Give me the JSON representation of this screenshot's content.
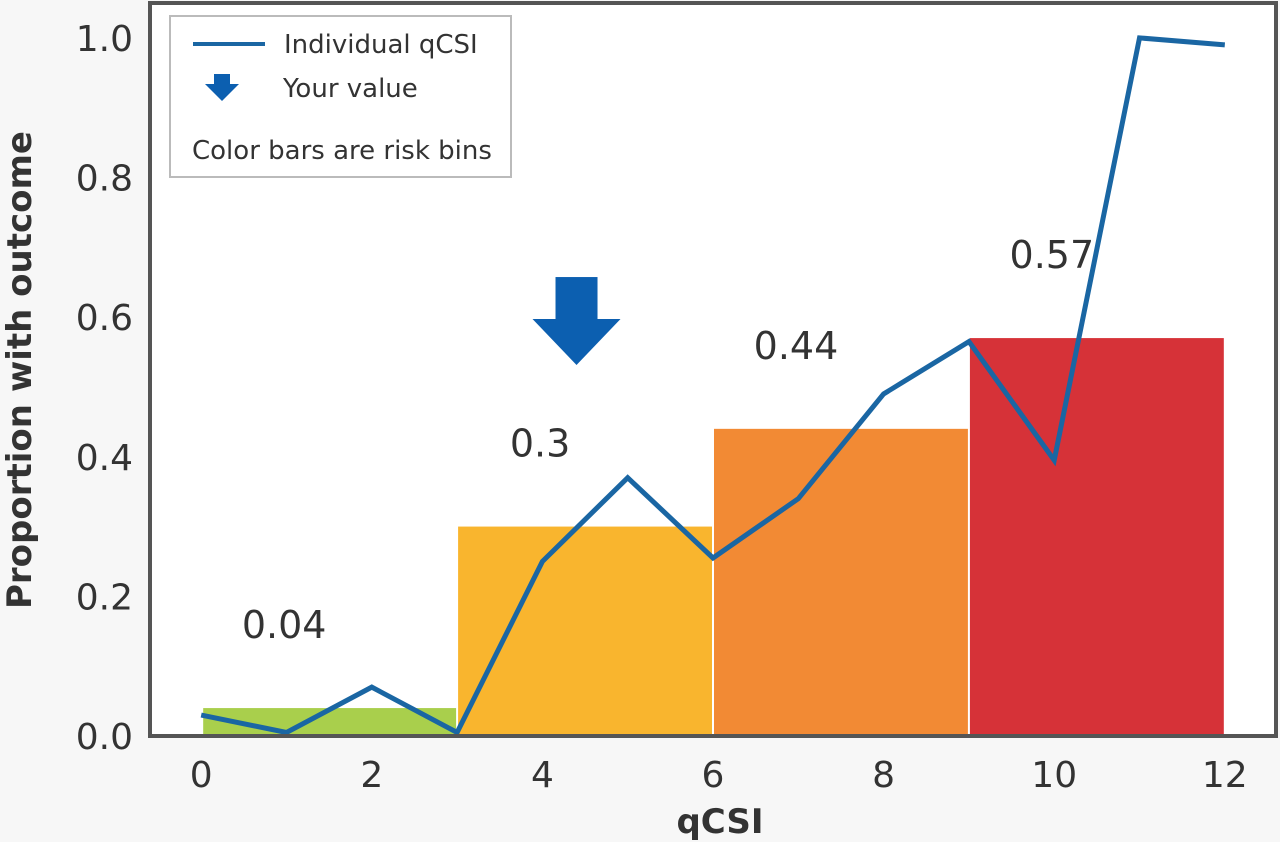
{
  "chart_data": {
    "type": "bar",
    "xlabel": "qCSI",
    "ylabel": "Proportion with outcome",
    "xlim": [
      -0.6,
      12.6
    ],
    "ylim": [
      0.0,
      1.05
    ],
    "x_ticks": [
      0,
      2,
      4,
      6,
      8,
      10,
      12
    ],
    "y_ticks": [
      0.0,
      0.2,
      0.4,
      0.6,
      0.8,
      1.0
    ],
    "x_tick_labels": [
      "0",
      "2",
      "4",
      "6",
      "8",
      "10",
      "12"
    ],
    "y_tick_labels": [
      "0.0",
      "0.2",
      "0.4",
      "0.6",
      "0.8",
      "1.0"
    ],
    "grid": false,
    "bins": [
      {
        "x_start": 0,
        "x_end": 3,
        "value": 0.04,
        "label": "0.04",
        "color": "#a9cf4c"
      },
      {
        "x_start": 3,
        "x_end": 6,
        "value": 0.3,
        "label": "0.3",
        "color": "#f9b52e"
      },
      {
        "x_start": 6,
        "x_end": 9,
        "value": 0.44,
        "label": "0.44",
        "color": "#f28a34"
      },
      {
        "x_start": 9,
        "x_end": 12,
        "value": 0.57,
        "label": "0.57",
        "color": "#d63238"
      }
    ],
    "series": [
      {
        "name": "Individual qCSI",
        "type": "line",
        "color": "#1a66a3",
        "x": [
          0,
          1,
          2,
          3,
          4,
          5,
          6,
          7,
          8,
          9,
          10,
          11,
          12
        ],
        "y": [
          0.03,
          0.005,
          0.07,
          0.005,
          0.25,
          0.37,
          0.255,
          0.34,
          0.49,
          0.565,
          0.395,
          1.0,
          0.99
        ]
      }
    ],
    "marker": {
      "name": "Your value",
      "x": 4.4,
      "y": 0.55,
      "color": "#0c5fb0"
    },
    "legend": {
      "position": "top-left",
      "entries": [
        "Individual qCSI",
        "Your value",
        "Color bars are risk bins"
      ]
    }
  }
}
